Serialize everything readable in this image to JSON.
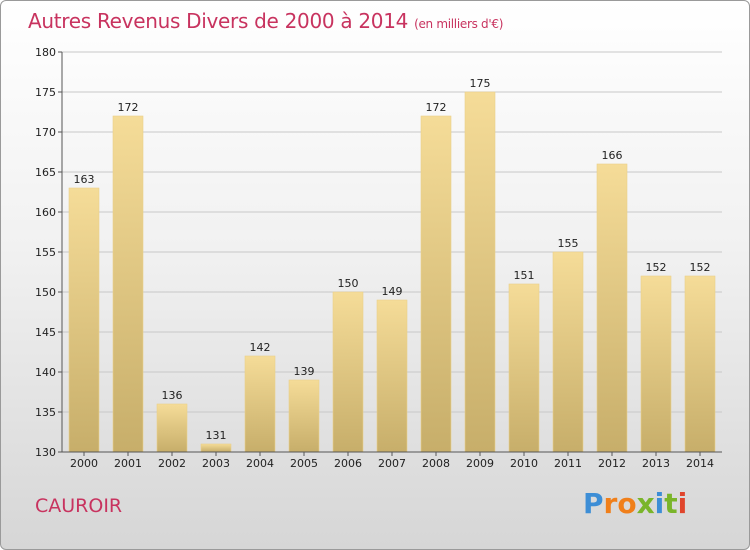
{
  "header": {
    "title": "Autres Revenus Divers de 2000 à 2014",
    "subtitle": "(en milliers d'€)"
  },
  "commune_name": "CAUROIR",
  "logo": {
    "text": "Proxiti",
    "letters": [
      {
        "ch": "P",
        "color": "#3d8ed6"
      },
      {
        "ch": "r",
        "color": "#f07f1a"
      },
      {
        "ch": "o",
        "color": "#f07f1a"
      },
      {
        "ch": "x",
        "color": "#7ab52a"
      },
      {
        "ch": "i",
        "color": "#3d8ed6"
      },
      {
        "ch": "t",
        "color": "#7ab52a"
      },
      {
        "ch": "i",
        "color": "#e0452c"
      }
    ]
  },
  "colors": {
    "title": "#c8335f",
    "bar_top": "#f5dc98",
    "bar_bottom": "#c7ae6a",
    "grid": "#c8c8c8",
    "axis": "#555555"
  },
  "chart_data": {
    "type": "bar",
    "title": "Autres Revenus Divers de 2000 à 2014",
    "subtitle": "(en milliers d'€)",
    "categories": [
      "2000",
      "2001",
      "2002",
      "2003",
      "2004",
      "2005",
      "2006",
      "2007",
      "2008",
      "2009",
      "2010",
      "2011",
      "2012",
      "2013",
      "2014"
    ],
    "values": [
      163,
      172,
      136,
      131,
      142,
      139,
      150,
      149,
      172,
      175,
      151,
      155,
      166,
      152,
      152
    ],
    "ylim": [
      130,
      180
    ],
    "yticks": [
      130,
      135,
      140,
      145,
      150,
      155,
      160,
      165,
      170,
      175,
      180
    ],
    "grid": true,
    "legend": "none"
  }
}
